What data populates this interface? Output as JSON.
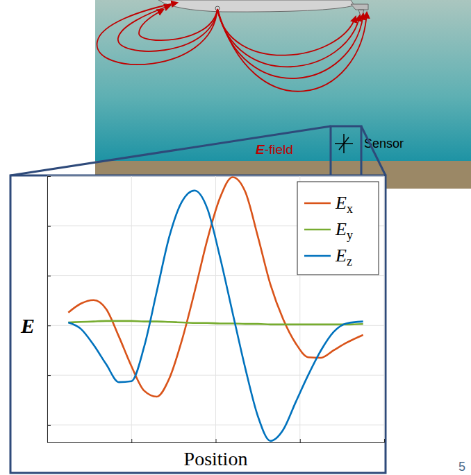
{
  "chart_data": {
    "type": "line",
    "xlabel": "Position",
    "ylabel": "E",
    "x": [
      0.25,
      0.4,
      0.55,
      0.7,
      0.85,
      1.0,
      1.15,
      1.3,
      1.45,
      1.6,
      1.75,
      1.9,
      2.05,
      2.2,
      2.35,
      2.5,
      2.65,
      2.8,
      2.95,
      3.1,
      3.25,
      3.4,
      3.55,
      3.75
    ],
    "series": [
      {
        "name": "Ex",
        "color": "#d95319",
        "values": [
          0.26,
          0.44,
          0.51,
          0.33,
          -0.22,
          -0.82,
          -1.31,
          -1.43,
          -1.06,
          -0.29,
          0.68,
          1.72,
          2.56,
          2.98,
          2.69,
          1.79,
          0.82,
          0.13,
          -0.36,
          -0.64,
          -0.65,
          -0.5,
          -0.35,
          -0.19
        ]
      },
      {
        "name": "Ey",
        "color": "#77ac30",
        "values": [
          0.06,
          0.07,
          0.08,
          0.09,
          0.09,
          0.09,
          0.08,
          0.08,
          0.07,
          0.06,
          0.05,
          0.05,
          0.04,
          0.04,
          0.03,
          0.03,
          0.02,
          0.02,
          0.02,
          0.02,
          0.02,
          0.02,
          0.02,
          0.03
        ]
      },
      {
        "name": "Ez",
        "color": "#0072bd",
        "values": [
          0.06,
          -0.07,
          -0.39,
          -0.78,
          -1.14,
          -1.12,
          -0.43,
          0.68,
          1.79,
          2.49,
          2.71,
          2.35,
          1.38,
          0.26,
          -0.85,
          -1.82,
          -2.32,
          -2.1,
          -1.54,
          -0.99,
          -0.5,
          -0.13,
          0.04,
          0.08
        ]
      }
    ],
    "xlim": [
      0,
      4
    ],
    "xticks": [
      0,
      1,
      2,
      3,
      4
    ],
    "ylim": [
      -2.35,
      3
    ],
    "yticks": [
      -2,
      -1,
      0,
      1,
      2,
      3
    ],
    "grid": true,
    "legend": "top-right",
    "tick_labels": false,
    "annotations": [
      "E-field",
      "Sensor"
    ]
  },
  "page_number": 5
}
